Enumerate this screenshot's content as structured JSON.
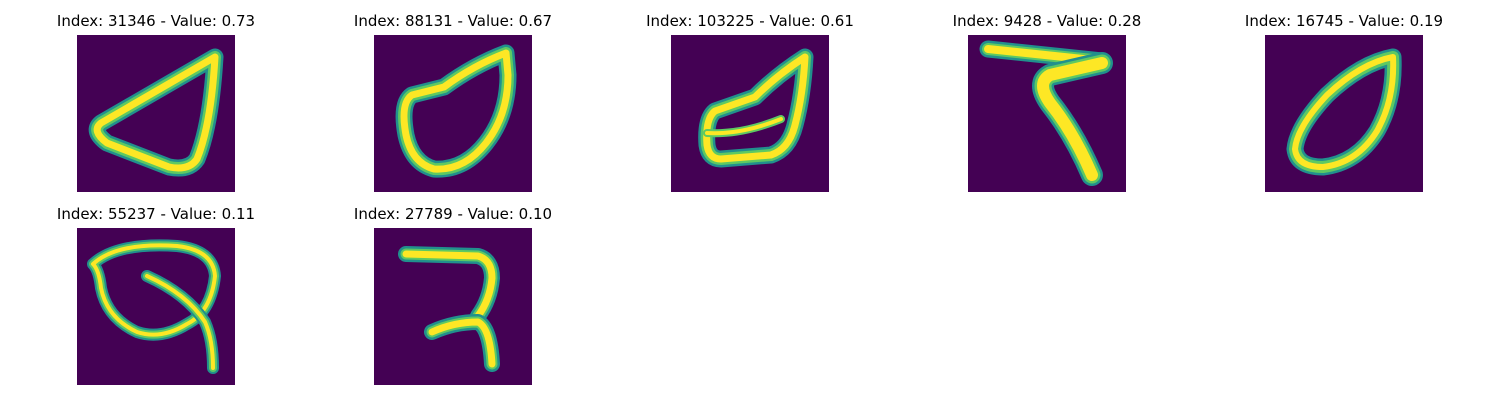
{
  "panels": [
    {
      "title": "Index: 31346 - Value: 0.73",
      "glyph": "digit-0-stroke"
    },
    {
      "title": "Index: 88131 - Value: 0.67",
      "glyph": "digit-0-stroke"
    },
    {
      "title": "Index: 103225 - Value: 0.61",
      "glyph": "digit-0-stroke"
    },
    {
      "title": "Index: 9428 - Value: 0.28",
      "glyph": "digit-7-stroke"
    },
    {
      "title": "Index: 16745 - Value: 0.19",
      "glyph": "digit-0-stroke"
    },
    {
      "title": "Index: 55237 - Value: 0.11",
      "glyph": "digit-9-stroke"
    },
    {
      "title": "Index: 27789 - Value: 0.10",
      "glyph": "digit-7-stroke"
    }
  ],
  "colors": {
    "background": "#440154",
    "stroke_edge": "#21908d",
    "stroke_mid": "#5ec962",
    "stroke_core": "#fde725"
  }
}
